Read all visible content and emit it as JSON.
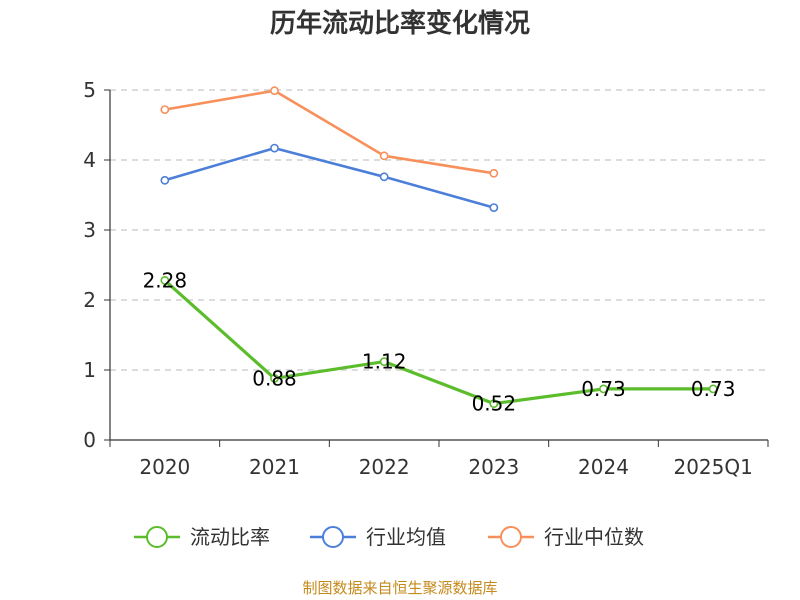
{
  "chart_data": {
    "type": "line",
    "title": "历年流动比率变化情况",
    "categories": [
      "2020",
      "2021",
      "2022",
      "2023",
      "2024",
      "2025Q1"
    ],
    "ylim": [
      0,
      5
    ],
    "yticks": [
      0,
      1,
      2,
      3,
      4,
      5
    ],
    "grid": true,
    "legend_position": "bottom",
    "series": [
      {
        "name": "流动比率",
        "color": "#5bbd2b",
        "values": [
          2.28,
          0.88,
          1.12,
          0.52,
          0.73,
          0.73
        ],
        "labels": [
          "2.28",
          "0.88",
          "1.12",
          "0.52",
          "0.73",
          "0.73"
        ]
      },
      {
        "name": "行业均值",
        "color": "#4c7fd9",
        "values": [
          3.71,
          4.17,
          3.76,
          3.32,
          null,
          null
        ]
      },
      {
        "name": "行业中位数",
        "color": "#f7905a",
        "values": [
          4.72,
          4.99,
          4.06,
          3.81,
          null,
          null
        ]
      }
    ]
  },
  "footer": {
    "source": "制图数据来自恒生聚源数据库"
  }
}
